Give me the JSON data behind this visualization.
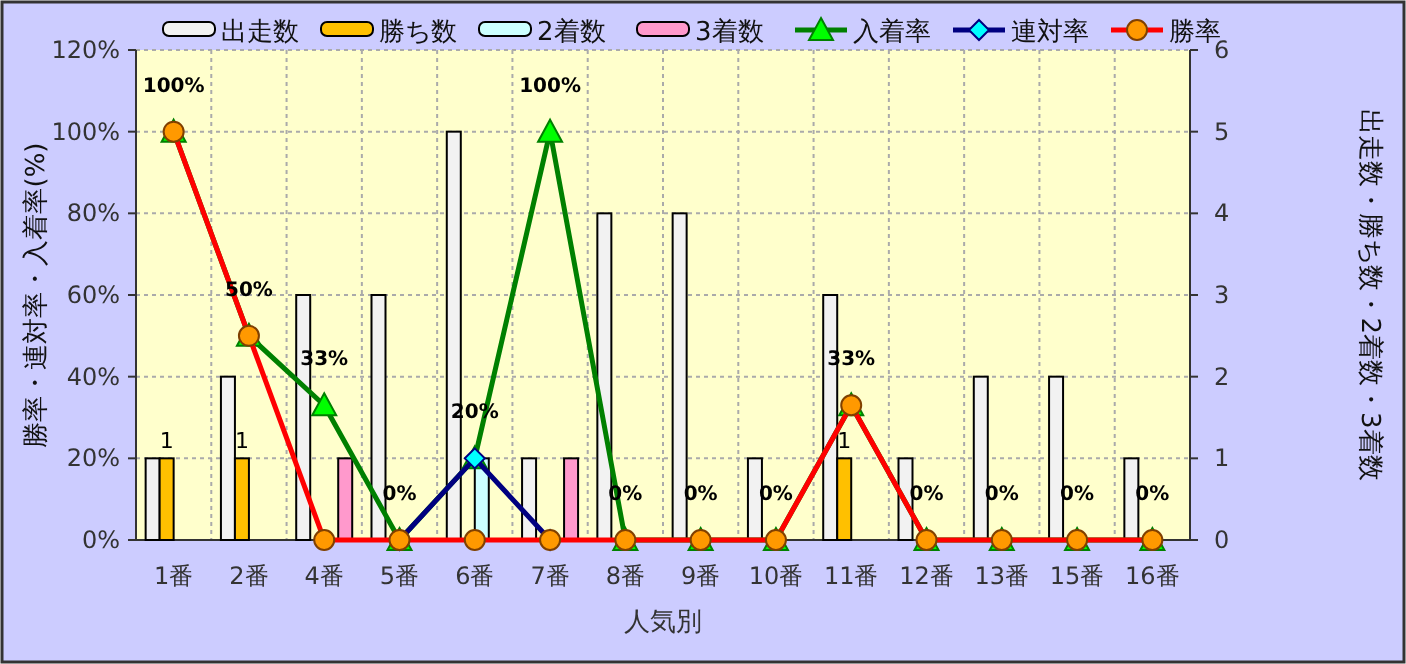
{
  "chart_data": {
    "type": "bar",
    "xlabel": "人気別",
    "ylabel": "勝率・連対率・入着率(%)",
    "y2label": "出走数・勝ち数・2着数・3着数",
    "categories": [
      "1番",
      "2番",
      "4番",
      "5番",
      "6番",
      "7番",
      "8番",
      "9番",
      "10番",
      "11番",
      "12番",
      "13番",
      "15番",
      "16番"
    ],
    "ylim": [
      0,
      120
    ],
    "yticks": [
      {
        "value": 0,
        "label": "0%"
      },
      {
        "value": 20,
        "label": "20%"
      },
      {
        "value": 40,
        "label": "40%"
      },
      {
        "value": 60,
        "label": "60%"
      },
      {
        "value": 80,
        "label": "80%"
      },
      {
        "value": 100,
        "label": "100%"
      },
      {
        "value": 120,
        "label": "120%"
      }
    ],
    "y2lim": [
      0,
      6
    ],
    "y2ticks": [
      0,
      1,
      2,
      3,
      4,
      5,
      6
    ],
    "grid": true,
    "legend": "top",
    "series": [
      {
        "name": "出走数",
        "axis": "y2",
        "color": "#f2f2f2",
        "values": [
          1,
          2,
          3,
          3,
          5,
          1,
          4,
          4,
          1,
          3,
          1,
          2,
          2,
          1
        ]
      },
      {
        "name": "勝ち数",
        "axis": "y2",
        "color": "#ffc000",
        "values": [
          1,
          1,
          0,
          0,
          0,
          0,
          0,
          0,
          0,
          1,
          0,
          0,
          0,
          0
        ],
        "value_labels": [
          "1",
          "1",
          null,
          null,
          null,
          null,
          null,
          null,
          null,
          "1",
          null,
          null,
          null,
          null
        ]
      },
      {
        "name": "2着数",
        "axis": "y2",
        "color": "#ccffff",
        "values": [
          0,
          0,
          0,
          0,
          1,
          0,
          0,
          0,
          0,
          0,
          0,
          0,
          0,
          0
        ]
      },
      {
        "name": "3着数",
        "axis": "y2",
        "color": "#ff99cc",
        "values": [
          0,
          0,
          1,
          0,
          0,
          1,
          0,
          0,
          0,
          0,
          0,
          0,
          0,
          0
        ]
      },
      {
        "name": "入着率",
        "type": "line",
        "marker": "triangle",
        "color": "#008000",
        "colors": [
          "#00ff00",
          "#00ff00",
          "#00ff00",
          "#00ff00",
          "#00ff00",
          "#00ff00",
          "#00ff00",
          "#00ff00",
          "#00ff00",
          "#00ff00",
          "#00ff00",
          "#00ff00",
          "#00ff00",
          "#00ff00"
        ],
        "values": [
          100,
          50,
          33,
          0,
          20,
          100,
          0,
          0,
          0,
          33,
          0,
          0,
          0,
          0
        ],
        "value_labels": [
          "100%",
          "50%",
          "33%",
          "0%",
          "20%",
          "100%",
          "0%",
          "0%",
          "0%",
          "33%",
          "0%",
          "0%",
          "0%",
          "0%"
        ]
      },
      {
        "name": "連対率",
        "type": "line",
        "marker": "diamond",
        "color": "#000080",
        "colors": [
          null,
          null,
          null,
          "#00ffff",
          "#00ffff",
          "#00ffff",
          null,
          null,
          null,
          null,
          null,
          null,
          null,
          null
        ],
        "values": [
          null,
          null,
          null,
          0,
          20,
          0,
          null,
          null,
          null,
          null,
          null,
          null,
          null,
          null
        ]
      },
      {
        "name": "勝率",
        "type": "line",
        "marker": "circle",
        "color": "#ff0000",
        "colors": [
          "#ff9900",
          "#ff9900",
          "#ff9900",
          "#ff9900",
          "#ff9900",
          "#ff9900",
          "#ff9900",
          "#ff9900",
          "#ff9900",
          "#ff9900",
          "#ff9900",
          "#ff9900",
          "#ff9900",
          "#ff9900"
        ],
        "values": [
          100,
          50,
          0,
          0,
          0,
          0,
          0,
          0,
          0,
          33,
          0,
          0,
          0,
          0
        ]
      }
    ]
  }
}
